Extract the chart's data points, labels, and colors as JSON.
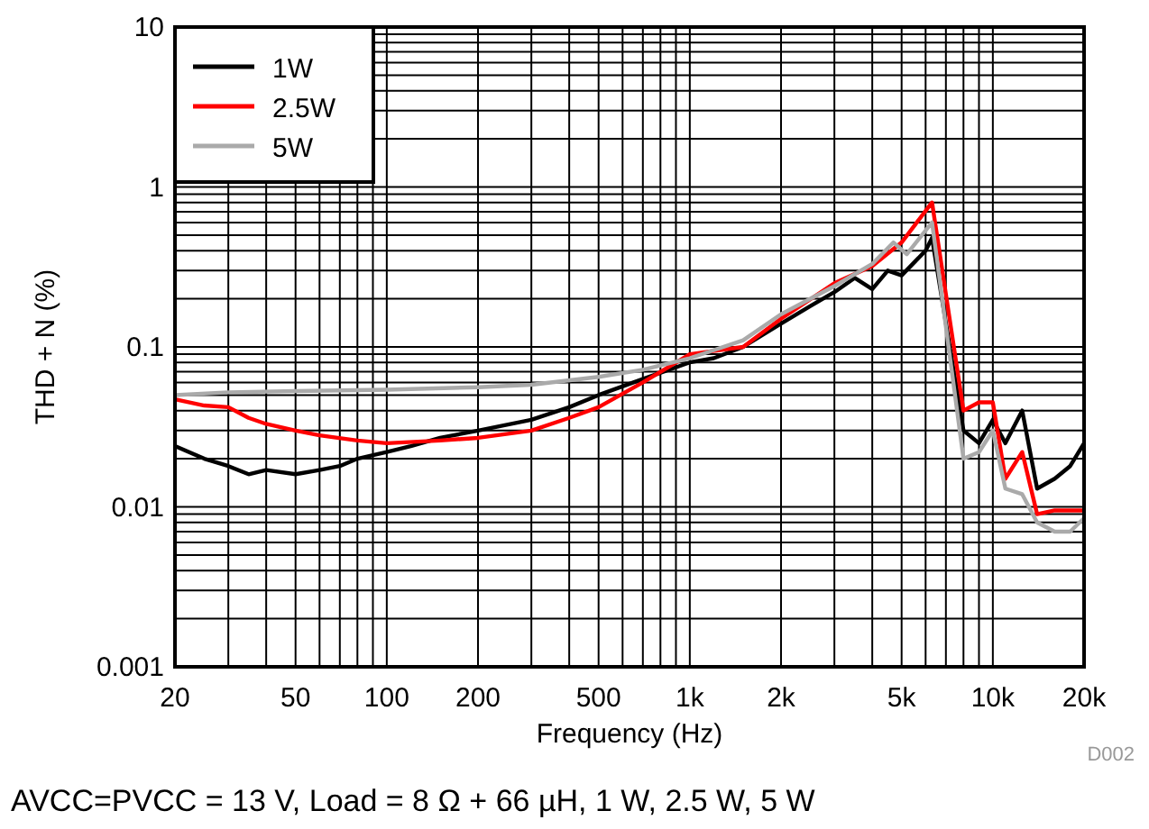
{
  "chart_data": {
    "type": "line",
    "xlabel": "Frequency (Hz)",
    "ylabel": "THD + N (%)",
    "log": "xy",
    "grid": true,
    "legend": "top left",
    "line_style": "solid",
    "xlim": [
      20,
      20000
    ],
    "ylim": [
      0.001,
      10
    ],
    "xticks": [
      20,
      {
        "value": 30,
        "label": null
      },
      {
        "value": 40,
        "label": null
      },
      50,
      {
        "value": 60,
        "label": null
      },
      {
        "value": 70,
        "label": null
      },
      {
        "value": 80,
        "label": null
      },
      {
        "value": 90,
        "label": null
      },
      100,
      200,
      {
        "value": 300,
        "label": null
      },
      {
        "value": 400,
        "label": null
      },
      500,
      {
        "value": 600,
        "label": null
      },
      {
        "value": 700,
        "label": null
      },
      {
        "value": 800,
        "label": null
      },
      {
        "value": 900,
        "label": null
      },
      {
        "value": 1000,
        "label": "1k"
      },
      {
        "value": 2000,
        "label": "2k"
      },
      {
        "value": 3000,
        "label": null
      },
      {
        "value": 4000,
        "label": null
      },
      {
        "value": 5000,
        "label": "5k"
      },
      {
        "value": 6000,
        "label": null
      },
      {
        "value": 7000,
        "label": null
      },
      {
        "value": 8000,
        "label": null
      },
      {
        "value": 9000,
        "label": null
      },
      {
        "value": 10000,
        "label": "10k"
      },
      {
        "value": 20000,
        "label": "20k"
      }
    ],
    "yticks": [
      0.001,
      {
        "value": 0.002,
        "label": null
      },
      {
        "value": 0.003,
        "label": null
      },
      {
        "value": 0.004,
        "label": null
      },
      {
        "value": 0.005,
        "label": null
      },
      {
        "value": 0.006,
        "label": null
      },
      {
        "value": 0.007,
        "label": null
      },
      {
        "value": 0.008,
        "label": null
      },
      {
        "value": 0.009,
        "label": null
      },
      0.01,
      {
        "value": 0.02,
        "label": null
      },
      {
        "value": 0.03,
        "label": null
      },
      {
        "value": 0.04,
        "label": null
      },
      {
        "value": 0.05,
        "label": null
      },
      {
        "value": 0.06,
        "label": null
      },
      {
        "value": 0.07,
        "label": null
      },
      {
        "value": 0.08,
        "label": null
      },
      {
        "value": 0.09,
        "label": null
      },
      0.1,
      {
        "value": 0.2,
        "label": null
      },
      {
        "value": 0.3,
        "label": null
      },
      {
        "value": 0.4,
        "label": null
      },
      {
        "value": 0.5,
        "label": null
      },
      {
        "value": 0.6,
        "label": null
      },
      {
        "value": 0.7,
        "label": null
      },
      {
        "value": 0.8,
        "label": null
      },
      {
        "value": 0.9,
        "label": null
      },
      1,
      {
        "value": 2,
        "label": null
      },
      {
        "value": 3,
        "label": null
      },
      {
        "value": 4,
        "label": null
      },
      {
        "value": 5,
        "label": null
      },
      {
        "value": 6,
        "label": null
      },
      {
        "value": 7,
        "label": null
      },
      {
        "value": 8,
        "label": null
      },
      {
        "value": 9,
        "label": null
      },
      10
    ],
    "annotations": [
      "D002",
      "AVCC=PVCC = 13 V, Load = 8 Ω + 66 µH, 1 W, 2.5 W, 5 W"
    ],
    "series": [
      {
        "name": "1W",
        "color": "#000000",
        "x": [
          20,
          25,
          30,
          35,
          40,
          50,
          60,
          70,
          80,
          100,
          120,
          150,
          200,
          300,
          400,
          500,
          700,
          1000,
          1200,
          1500,
          2000,
          2500,
          3000,
          3500,
          4000,
          4500,
          5000,
          6000,
          6300,
          8000,
          9000,
          10000,
          11000,
          12500,
          14000,
          16000,
          18000,
          20000
        ],
        "values": [
          0.024,
          0.02,
          0.018,
          0.016,
          0.017,
          0.016,
          0.017,
          0.018,
          0.02,
          0.022,
          0.024,
          0.027,
          0.03,
          0.035,
          0.042,
          0.05,
          0.063,
          0.08,
          0.085,
          0.1,
          0.14,
          0.18,
          0.22,
          0.27,
          0.23,
          0.3,
          0.28,
          0.4,
          0.48,
          0.03,
          0.025,
          0.035,
          0.025,
          0.04,
          0.013,
          0.015,
          0.018,
          0.025
        ]
      },
      {
        "name": "2.5W",
        "color": "#ff0000",
        "x": [
          20,
          25,
          30,
          35,
          40,
          50,
          60,
          80,
          100,
          150,
          200,
          300,
          400,
          500,
          700,
          1000,
          1500,
          2000,
          3000,
          4000,
          5000,
          6300,
          8000,
          9000,
          10000,
          11000,
          12500,
          14000,
          16000,
          20000
        ],
        "values": [
          0.047,
          0.043,
          0.042,
          0.036,
          0.033,
          0.03,
          0.028,
          0.026,
          0.025,
          0.026,
          0.027,
          0.03,
          0.036,
          0.042,
          0.06,
          0.09,
          0.1,
          0.15,
          0.25,
          0.32,
          0.45,
          0.8,
          0.04,
          0.045,
          0.045,
          0.015,
          0.022,
          0.009,
          0.0095,
          0.0095
        ]
      },
      {
        "name": "5W",
        "color": "#aaaaaa",
        "x": [
          20,
          30,
          50,
          100,
          200,
          300,
          500,
          700,
          1000,
          1500,
          2000,
          3000,
          4000,
          4700,
          5200,
          6300,
          8000,
          9000,
          10000,
          11000,
          12500,
          14000,
          16000,
          18000,
          20000
        ],
        "values": [
          0.05,
          0.052,
          0.053,
          0.054,
          0.056,
          0.058,
          0.065,
          0.072,
          0.085,
          0.11,
          0.16,
          0.24,
          0.33,
          0.45,
          0.38,
          0.6,
          0.02,
          0.022,
          0.03,
          0.013,
          0.012,
          0.008,
          0.007,
          0.007,
          0.0085
        ]
      }
    ]
  }
}
